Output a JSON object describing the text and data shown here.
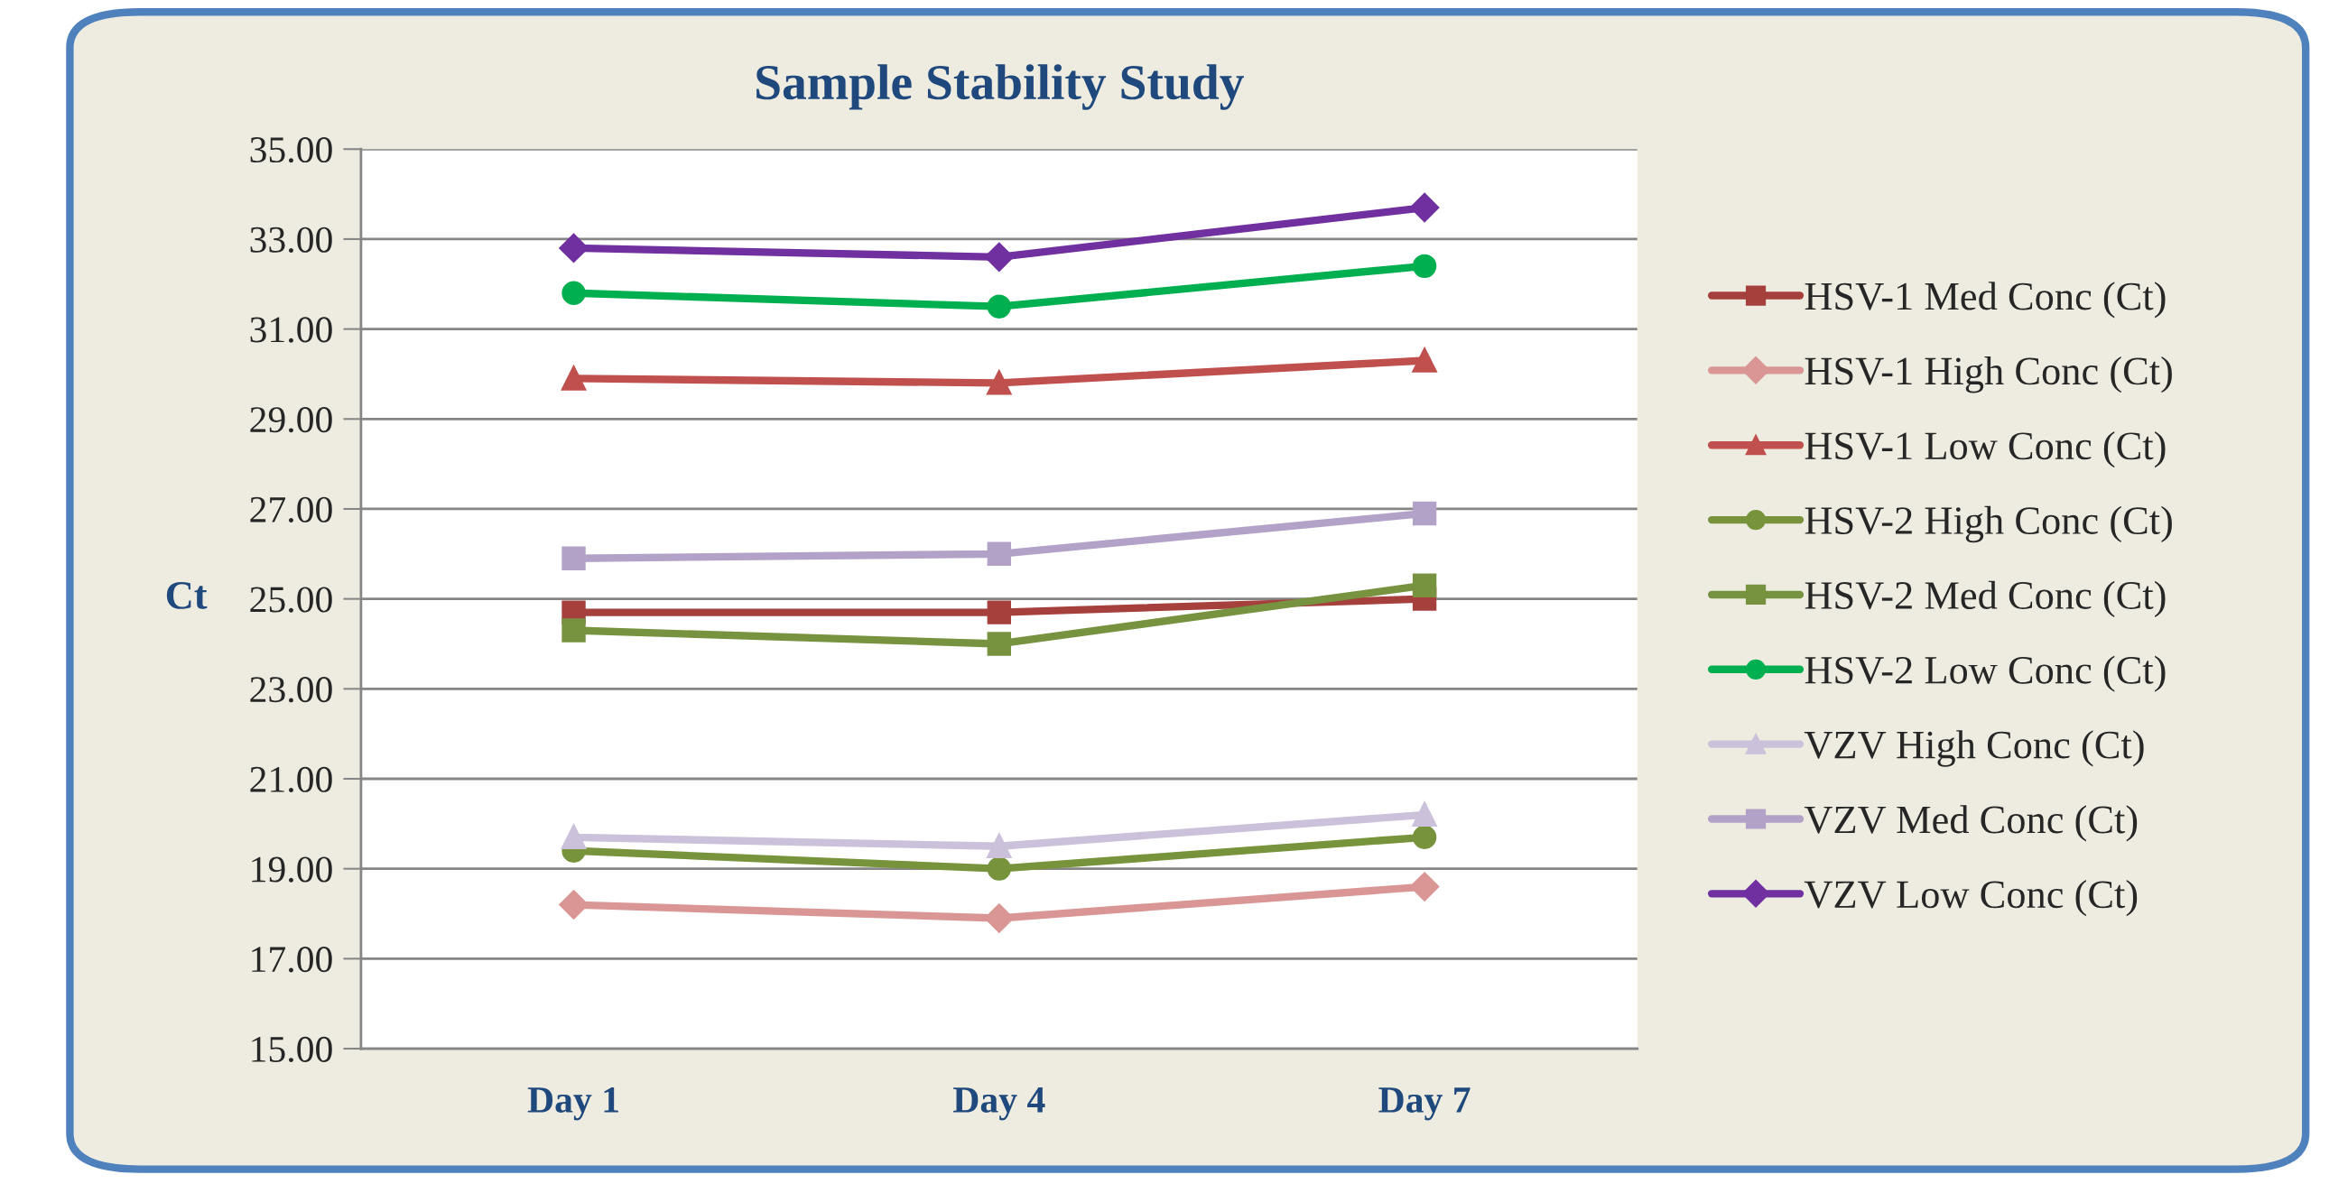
{
  "chart_data": {
    "type": "line",
    "title": "Sample Stability Study",
    "ylabel": "Ct",
    "categories": [
      "Day 1",
      "Day 4",
      "Day 7"
    ],
    "ylim": [
      15,
      35
    ],
    "yticks": [
      {
        "value": 15,
        "label": "15.00"
      },
      {
        "value": 17,
        "label": "17.00"
      },
      {
        "value": 19,
        "label": "19.00"
      },
      {
        "value": 21,
        "label": "21.00"
      },
      {
        "value": 23,
        "label": "23.00"
      },
      {
        "value": 25,
        "label": "25.00"
      },
      {
        "value": 27,
        "label": "27.00"
      },
      {
        "value": 29,
        "label": "29.00"
      },
      {
        "value": 31,
        "label": "31.00"
      },
      {
        "value": 33,
        "label": "33.00"
      },
      {
        "value": 35,
        "label": "35.00"
      }
    ],
    "grid": "y",
    "legend": "right",
    "line_style": "solid",
    "series": [
      {
        "name": "HSV-1 Med Conc (Ct)",
        "color": "#a5403d",
        "marker": "square",
        "values": [
          24.7,
          24.7,
          25.0
        ]
      },
      {
        "name": "HSV-1 High Conc (Ct)",
        "color": "#d99694",
        "marker": "diamond",
        "values": [
          18.2,
          17.9,
          18.6
        ]
      },
      {
        "name": "HSV-1 Low Conc (Ct)",
        "color": "#c0504d",
        "marker": "triangle",
        "values": [
          29.9,
          29.8,
          30.3
        ]
      },
      {
        "name": "HSV-2 High Conc (Ct)",
        "color": "#77933c",
        "marker": "circle",
        "values": [
          19.4,
          19.0,
          19.7
        ]
      },
      {
        "name": "HSV-2 Med Conc (Ct)",
        "color": "#779340",
        "marker": "square",
        "values": [
          24.3,
          24.0,
          25.3
        ]
      },
      {
        "name": "HSV-2 Low Conc (Ct)",
        "color": "#00b050",
        "marker": "circle",
        "values": [
          31.8,
          31.5,
          32.4
        ]
      },
      {
        "name": "VZV High Conc (Ct)",
        "color": "#ccc1da",
        "marker": "triangle",
        "values": [
          19.7,
          19.5,
          20.2
        ]
      },
      {
        "name": "VZV Med Conc (Ct)",
        "color": "#b3a2c7",
        "marker": "square",
        "values": [
          25.9,
          26.0,
          26.9
        ]
      },
      {
        "name": "VZV Low Conc (Ct)",
        "color": "#7030a0",
        "marker": "diamond",
        "values": [
          32.8,
          32.6,
          33.7
        ]
      }
    ]
  }
}
